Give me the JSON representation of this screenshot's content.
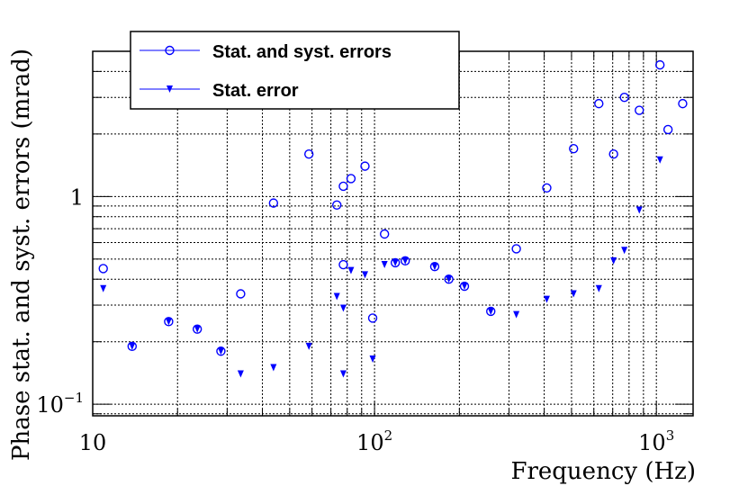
{
  "chart_data": {
    "type": "scatter",
    "xlabel": "Frequency (Hz)",
    "ylabel": "Phase stat. and syst. errors (mrad)",
    "x_scale": "log",
    "y_scale": "log",
    "xlim": [
      10,
      1350
    ],
    "ylim": [
      0.088,
      5.0
    ],
    "grid": true,
    "legend_position": "top-left",
    "x_ticks": [
      {
        "value": 10,
        "base": "10",
        "exp": ""
      },
      {
        "value": 100,
        "base": "10",
        "exp": "2"
      },
      {
        "value": 1000,
        "base": "10",
        "exp": "3"
      }
    ],
    "y_ticks": [
      {
        "value": 0.1,
        "base": "10",
        "exp": "−1"
      },
      {
        "value": 1,
        "base": "1",
        "exp": ""
      }
    ],
    "series": [
      {
        "name": "Stat. and syst. errors",
        "marker": "open-circle",
        "color": "#0000ff",
        "points": [
          [
            10.9,
            0.45
          ],
          [
            13.8,
            0.19
          ],
          [
            18.6,
            0.25
          ],
          [
            23.5,
            0.23
          ],
          [
            28.5,
            0.18
          ],
          [
            33.5,
            0.34
          ],
          [
            43.8,
            0.93
          ],
          [
            58.5,
            1.6
          ],
          [
            73.5,
            0.91
          ],
          [
            77.5,
            1.12
          ],
          [
            77.5,
            0.47
          ],
          [
            82.5,
            1.22
          ],
          [
            92.5,
            1.4
          ],
          [
            98.5,
            0.26
          ],
          [
            108.5,
            0.66
          ],
          [
            118.5,
            0.48
          ],
          [
            128.5,
            0.49
          ],
          [
            163.5,
            0.46
          ],
          [
            183.5,
            0.4
          ],
          [
            208.5,
            0.37
          ],
          [
            258.5,
            0.28
          ],
          [
            318.5,
            0.56
          ],
          [
            408.5,
            1.1
          ],
          [
            508.5,
            1.7
          ],
          [
            625,
            2.8
          ],
          [
            705,
            1.6
          ],
          [
            770,
            3.0
          ],
          [
            870,
            2.6
          ],
          [
            1030,
            4.3
          ],
          [
            1100,
            2.1
          ],
          [
            1240,
            2.8
          ]
        ]
      },
      {
        "name": "Stat. error",
        "marker": "down-triangle",
        "color": "#0000ff",
        "points": [
          [
            10.9,
            0.36
          ],
          [
            13.8,
            0.19
          ],
          [
            18.6,
            0.25
          ],
          [
            23.5,
            0.23
          ],
          [
            28.5,
            0.18
          ],
          [
            33.5,
            0.14
          ],
          [
            43.8,
            0.15
          ],
          [
            58.5,
            0.19
          ],
          [
            73.5,
            0.33
          ],
          [
            77.5,
            0.29
          ],
          [
            77.5,
            0.14
          ],
          [
            82.5,
            0.44
          ],
          [
            92.5,
            0.42
          ],
          [
            98.5,
            0.165
          ],
          [
            108.5,
            0.47
          ],
          [
            118.5,
            0.48
          ],
          [
            128.5,
            0.49
          ],
          [
            163.5,
            0.46
          ],
          [
            183.5,
            0.4
          ],
          [
            208.5,
            0.37
          ],
          [
            258.5,
            0.28
          ],
          [
            318.5,
            0.27
          ],
          [
            408.5,
            0.32
          ],
          [
            508.5,
            0.34
          ],
          [
            625,
            0.36
          ],
          [
            705,
            0.49
          ],
          [
            770,
            0.55
          ],
          [
            870,
            0.86
          ],
          [
            1030,
            1.5
          ]
        ]
      }
    ]
  }
}
